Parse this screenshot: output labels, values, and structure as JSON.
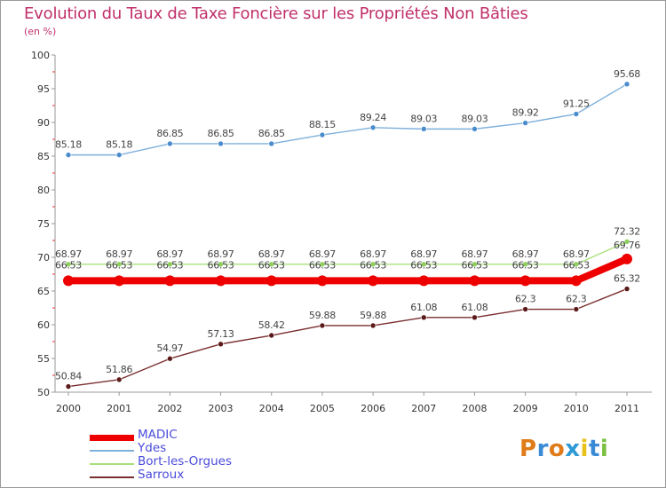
{
  "title": "Evolution du Taux de Taxe Foncière sur les Propriétés Non Bâties",
  "subtitle": "(en %)",
  "logo": {
    "text": [
      "P",
      "r",
      "o",
      "x",
      "i",
      "t",
      "i"
    ],
    "colors": [
      "#e07b1a",
      "#3a8ad6",
      "#e07b1a",
      "#2e9ad6",
      "#e8c21a",
      "#3a8ad6",
      "#7cc043"
    ]
  },
  "chart_data": {
    "type": "line",
    "title": "Evolution du Taux de Taxe Foncière sur les Propriétés Non Bâties",
    "ylabel": "(en %)",
    "xlabel": "",
    "ylim": [
      50,
      100
    ],
    "yticks": [
      50,
      55,
      60,
      65,
      70,
      75,
      80,
      85,
      90,
      95,
      100
    ],
    "categories": [
      "2000",
      "2001",
      "2002",
      "2003",
      "2004",
      "2005",
      "2006",
      "2007",
      "2008",
      "2009",
      "2010",
      "2011"
    ],
    "series": [
      {
        "name": "MADIC",
        "color": "#ee0000",
        "values": [
          66.53,
          66.53,
          66.53,
          66.53,
          66.53,
          66.53,
          66.53,
          66.53,
          66.53,
          66.53,
          66.53,
          69.76
        ],
        "labels": [
          "66.53",
          "66.53",
          "66.53",
          "66.53",
          "66.53",
          "66.53",
          "66.53",
          "66.53",
          "66.53",
          "66.53",
          "66.53",
          "69.76"
        ]
      },
      {
        "name": "Ydes",
        "color": "#7fb0dc",
        "values": [
          85.18,
          85.18,
          86.85,
          86.85,
          86.85,
          88.15,
          89.24,
          89.03,
          89.03,
          89.92,
          91.25,
          95.68
        ],
        "labels": [
          "85.18",
          "85.18",
          "86.85",
          "86.85",
          "86.85",
          "88.15",
          "89.24",
          "89.03",
          "89.03",
          "89.92",
          "91.25",
          "95.68"
        ]
      },
      {
        "name": "Bort-les-Orgues",
        "color": "#a8e07a",
        "values": [
          68.97,
          68.97,
          68.97,
          68.97,
          68.97,
          68.97,
          68.97,
          68.97,
          68.97,
          68.97,
          68.97,
          72.32
        ],
        "labels": [
          "68.97",
          "68.97",
          "68.97",
          "68.97",
          "68.97",
          "68.97",
          "68.97",
          "68.97",
          "68.97",
          "68.97",
          "68.97",
          "72.32"
        ]
      },
      {
        "name": "Sarroux",
        "color": "#7a2e2e",
        "values": [
          50.84,
          51.86,
          54.97,
          57.13,
          58.42,
          59.88,
          59.88,
          61.08,
          61.08,
          62.3,
          62.3,
          65.32
        ],
        "labels": [
          "50.84",
          "51.86",
          "54.97",
          "57.13",
          "58.42",
          "59.88",
          "59.88",
          "61.08",
          "61.08",
          "62.3",
          "62.3",
          "65.32"
        ]
      }
    ],
    "legend": [
      "MADIC",
      "Ydes",
      "Bort-les-Orgues",
      "Sarroux"
    ],
    "legend_position": "bottom-left",
    "grid": false
  }
}
